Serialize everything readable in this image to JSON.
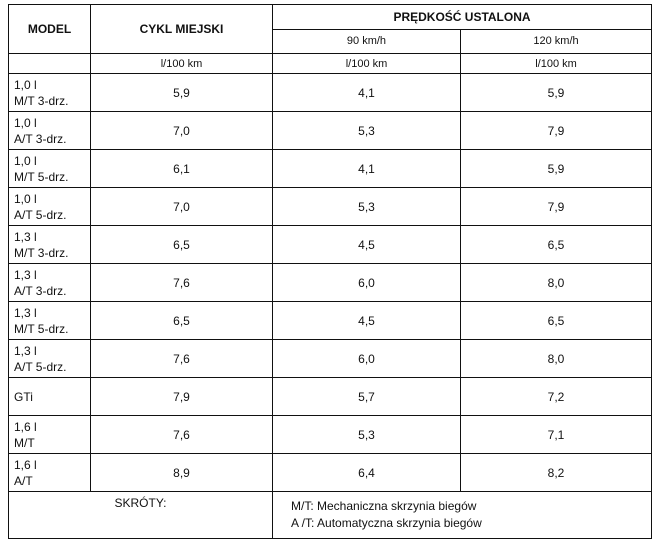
{
  "header": {
    "model": "MODEL",
    "city": "CYKL MIEJSKI",
    "constant_speed": "PRĘDKOŚĆ USTALONA",
    "speed_90": "90 km/h",
    "speed_120": "120 km/h",
    "unit": "l/100 km"
  },
  "rows": [
    {
      "model_l1": "1,0 l",
      "model_l2": "M/T 3-drz.",
      "city": "5,9",
      "v90": "4,1",
      "v120": "5,9"
    },
    {
      "model_l1": "1,0 l",
      "model_l2": "A/T 3-drz.",
      "city": "7,0",
      "v90": "5,3",
      "v120": "7,9"
    },
    {
      "model_l1": "1,0 l",
      "model_l2": "M/T 5-drz.",
      "city": "6,1",
      "v90": "4,1",
      "v120": "5,9"
    },
    {
      "model_l1": "1,0 l",
      "model_l2": "A/T 5-drz.",
      "city": "7,0",
      "v90": "5,3",
      "v120": "7,9"
    },
    {
      "model_l1": "1,3 l",
      "model_l2": "M/T 3-drz.",
      "city": "6,5",
      "v90": "4,5",
      "v120": "6,5"
    },
    {
      "model_l1": "1,3 l",
      "model_l2": "A/T 3-drz.",
      "city": "7,6",
      "v90": "6,0",
      "v120": "8,0"
    },
    {
      "model_l1": "1,3 l",
      "model_l2": "M/T 5-drz.",
      "city": "6,5",
      "v90": "4,5",
      "v120": "6,5"
    },
    {
      "model_l1": "1,3 l",
      "model_l2": "A/T 5-drz.",
      "city": "7,6",
      "v90": "6,0",
      "v120": "8,0"
    },
    {
      "model_l1": "GTi",
      "model_l2": "",
      "city": "7,9",
      "v90": "5,7",
      "v120": "7,2"
    },
    {
      "model_l1": "1,6 l",
      "model_l2": "M/T",
      "city": "7,6",
      "v90": "5,3",
      "v120": "7,1"
    },
    {
      "model_l1": "1,6 l",
      "model_l2": "A/T",
      "city": "8,9",
      "v90": "6,4",
      "v120": "8,2"
    }
  ],
  "footer": {
    "abbrev_title": "SKRÓTY:",
    "mt": "M/T: Mechaniczna skrzynia biegów",
    "at": "A /T: Automatyczna skrzynia biegów"
  }
}
